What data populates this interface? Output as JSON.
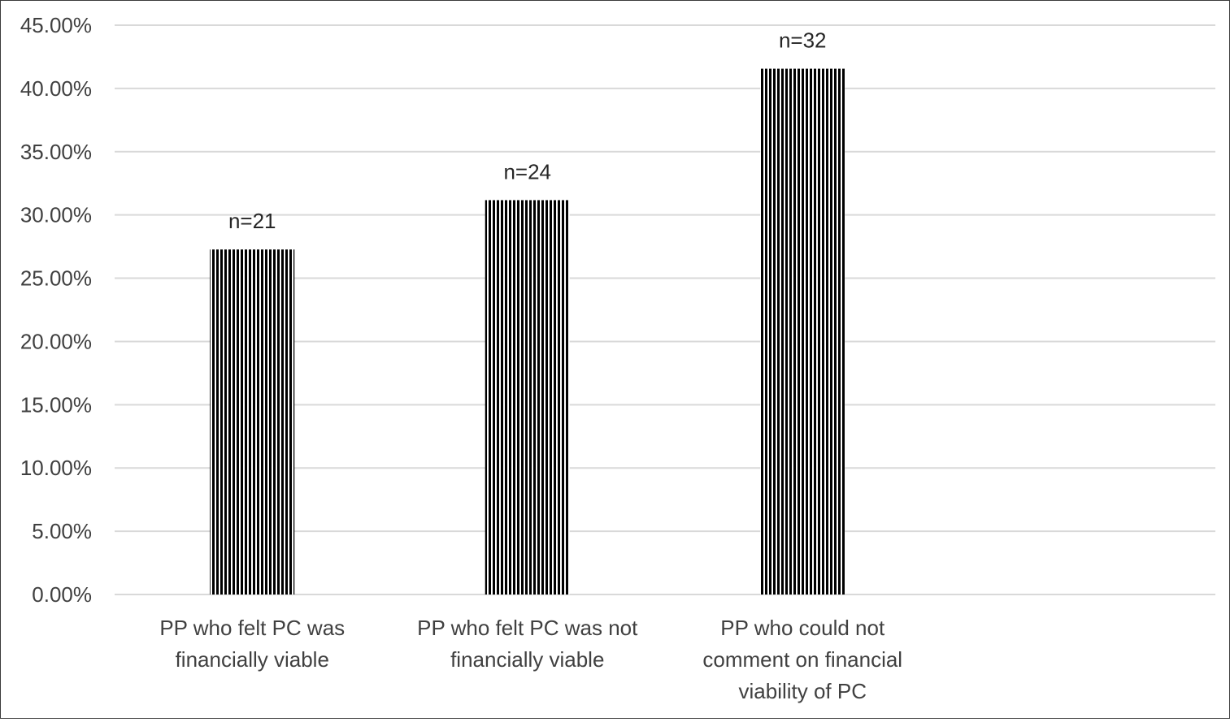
{
  "chart_data": {
    "type": "bar",
    "title": "",
    "xlabel": "",
    "ylabel": "",
    "categories": [
      [
        "PP who felt PC was",
        "financially viable"
      ],
      [
        "PP who felt PC was not",
        "financially viable"
      ],
      [
        "PP who could not",
        "comment on financial",
        "viability of PC"
      ]
    ],
    "values": [
      27.27,
      31.17,
      41.56
    ],
    "data_labels": [
      "n=21",
      "n=24",
      "n=32"
    ],
    "ylim": [
      0,
      45
    ],
    "yticks": [
      0,
      5,
      10,
      15,
      20,
      25,
      30,
      35,
      40,
      45
    ],
    "ytick_labels": [
      "0.00%",
      "5.00%",
      "10.00%",
      "15.00%",
      "20.00%",
      "25.00%",
      "30.00%",
      "35.00%",
      "40.00%",
      "45.00%"
    ],
    "grid": true,
    "legend": "none",
    "colors": {
      "bar_stripe_dark": "#000000",
      "bar_stripe_light": "#ffffff",
      "gridline": "#d9d9d9",
      "text": "#404040"
    }
  }
}
